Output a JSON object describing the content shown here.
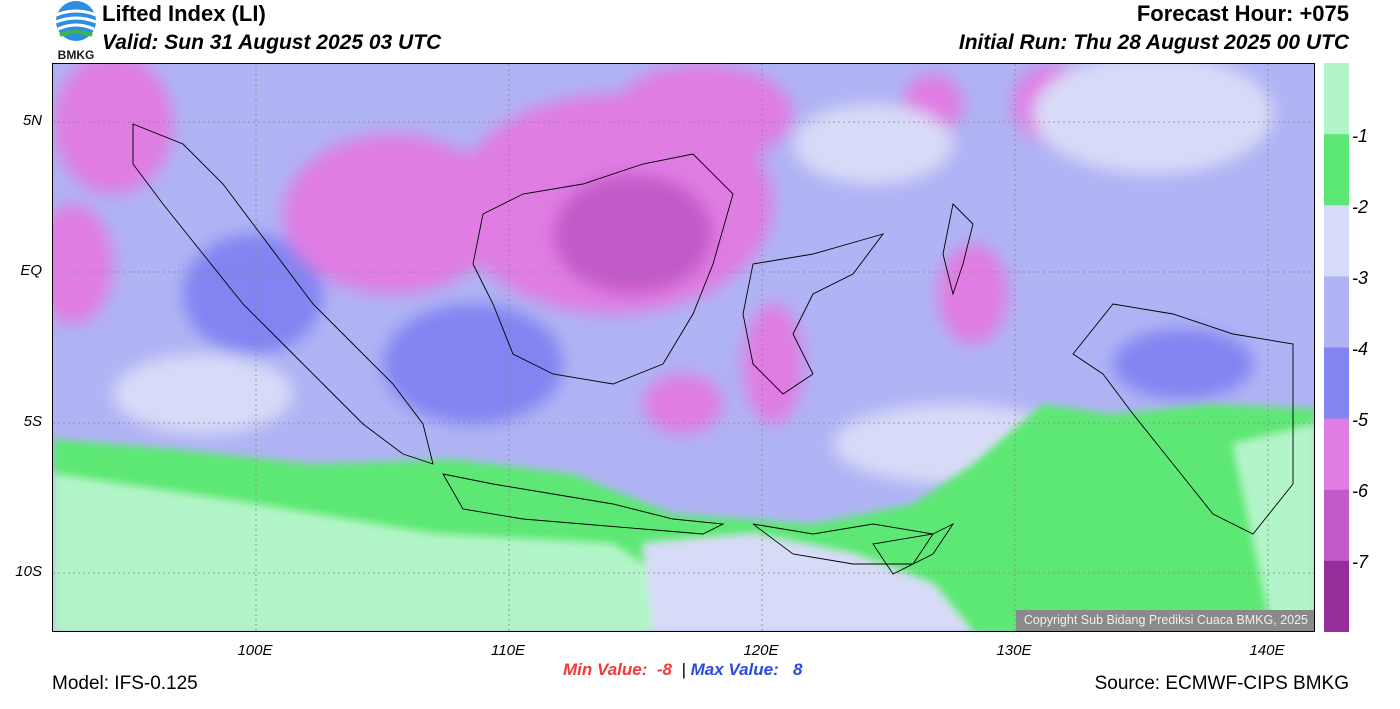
{
  "header": {
    "logo_text": "BMKG",
    "title": "Lifted Index (LI)",
    "valid": "Valid: Sun 31 August 2025 03 UTC",
    "forecast_hour": "Forecast Hour: +075",
    "initial_run": "Initial Run: Thu 28 August 2025 00 UTC"
  },
  "map": {
    "lat_labels": [
      "5N",
      "EQ",
      "5S",
      "10S"
    ],
    "lon_labels": [
      "100E",
      "110E",
      "120E",
      "130E",
      "140E"
    ],
    "copyright": "Copyright Sub Bidang Prediksi Cuaca BMKG, 2025"
  },
  "colorbar": {
    "labels": [
      "-1",
      "-2",
      "-3",
      "-4",
      "-5",
      "-6",
      "-7"
    ],
    "colors": [
      "#b2f5c8",
      "#5de875",
      "#d8dbf7",
      "#b0b3f4",
      "#8284f2",
      "#e07de3",
      "#c25ac9",
      "#952e9b"
    ]
  },
  "stats": {
    "min_label": "Min Value:",
    "min_value": "-8",
    "separator": "|",
    "max_label": "Max Value:",
    "max_value": "8"
  },
  "footer": {
    "model": "Model: IFS-0.125",
    "source": "Source: ECMWF-CIPS BMKG"
  }
}
